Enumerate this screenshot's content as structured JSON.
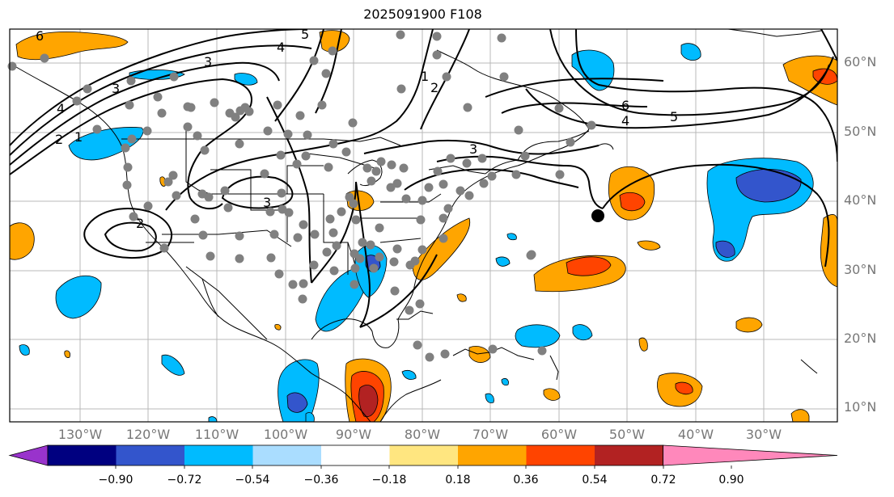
{
  "title": "2025091900 F108",
  "lat_labels": [
    "60°N",
    "50°N",
    "40°N",
    "30°N",
    "20°N",
    "10°N"
  ],
  "lon_labels": [
    "130°W",
    "120°W",
    "110°W",
    "100°W",
    "90°W",
    "80°W",
    "70°W",
    "60°W",
    "50°W",
    "40°W",
    "30°W"
  ],
  "contour_labels": [
    "6",
    "5",
    "4",
    "3",
    "2",
    "1",
    "6",
    "4",
    "5",
    "3",
    "3",
    "2",
    "2",
    "1",
    "4",
    "3"
  ],
  "colorbar": {
    "ticks": [
      "−0.90",
      "−0.72",
      "−0.54",
      "−0.36",
      "−0.18",
      "0.18",
      "0.36",
      "0.54",
      "0.72",
      "0.90"
    ],
    "colors": [
      "#9933cc",
      "#000080",
      "#3355cc",
      "#00bbff",
      "#aaddff",
      "#ffffff",
      "#ffe680",
      "#ffa500",
      "#ff4400",
      "#b22222",
      "#ff88bb"
    ]
  },
  "marker": {
    "label": "storm-center-marker",
    "color": "#000000"
  },
  "station_color": "#808080"
}
